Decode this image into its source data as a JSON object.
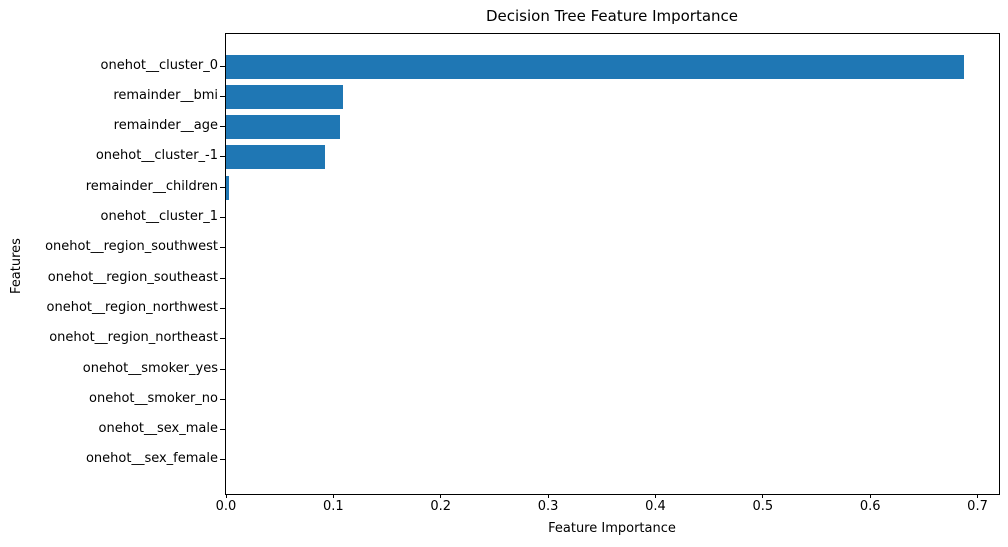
{
  "chart_data": {
    "type": "bar",
    "orientation": "horizontal",
    "title": "Decision Tree Feature Importance",
    "xlabel": "Feature Importance",
    "ylabel": "Features",
    "categories": [
      "onehot__cluster_0",
      "remainder__bmi",
      "remainder__age",
      "onehot__cluster_-1",
      "remainder__children",
      "onehot__cluster_1",
      "onehot__region_southwest",
      "onehot__region_southeast",
      "onehot__region_northwest",
      "onehot__region_northeast",
      "onehot__smoker_yes",
      "onehot__smoker_no",
      "onehot__sex_male",
      "onehot__sex_female"
    ],
    "values": [
      0.687,
      0.109,
      0.106,
      0.092,
      0.003,
      0,
      0,
      0,
      0,
      0,
      0,
      0,
      0,
      0
    ],
    "xlim": [
      0.0,
      0.72
    ],
    "xticks": [
      0.0,
      0.1,
      0.2,
      0.3,
      0.4,
      0.5,
      0.6,
      0.7
    ],
    "xtick_labels": [
      "0.0",
      "0.1",
      "0.2",
      "0.3",
      "0.4",
      "0.5",
      "0.6",
      "0.7"
    ],
    "bar_color": "#1f77b4",
    "spine_color": "#000000",
    "grid": false,
    "legend": "none"
  }
}
